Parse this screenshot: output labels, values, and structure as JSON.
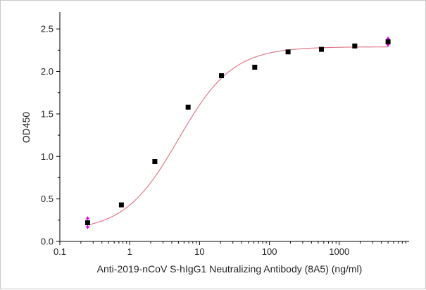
{
  "chart_data": {
    "type": "scatter",
    "title": "",
    "xlabel": "Anti-2019-nCoV S-hIgG1 Neutralizing Antibody (8A5) (ng/ml)",
    "ylabel": "OD450",
    "x_scale": "log",
    "xlim": [
      0.1,
      10000
    ],
    "ylim": [
      0.0,
      2.7
    ],
    "x_ticks": [
      "0.1",
      "1",
      "10",
      "100",
      "1000"
    ],
    "y_ticks": [
      "0.0",
      "0.5",
      "1.0",
      "1.5",
      "2.0",
      "2.5"
    ],
    "grid": false,
    "legend": "none",
    "series": [
      {
        "type": "scatter",
        "x": [
          0.25,
          0.76,
          2.29,
          6.86,
          20.6,
          61.7,
          185,
          556,
          1667,
          5000
        ],
        "y": [
          0.22,
          0.43,
          0.94,
          1.58,
          1.95,
          2.05,
          2.23,
          2.26,
          2.3,
          2.35
        ],
        "marker": "square",
        "color": "#000000",
        "error_y": [
          0,
          0,
          0,
          0,
          0,
          0,
          0,
          0,
          0,
          0.06
        ]
      },
      {
        "type": "line",
        "fit": "4PL",
        "color": "#e07a8a",
        "params": {
          "bottom": 0.12,
          "top": 2.29,
          "ec50": 5.0,
          "hill": 1.12
        }
      }
    ],
    "errorbar_color": "#e000e0"
  }
}
